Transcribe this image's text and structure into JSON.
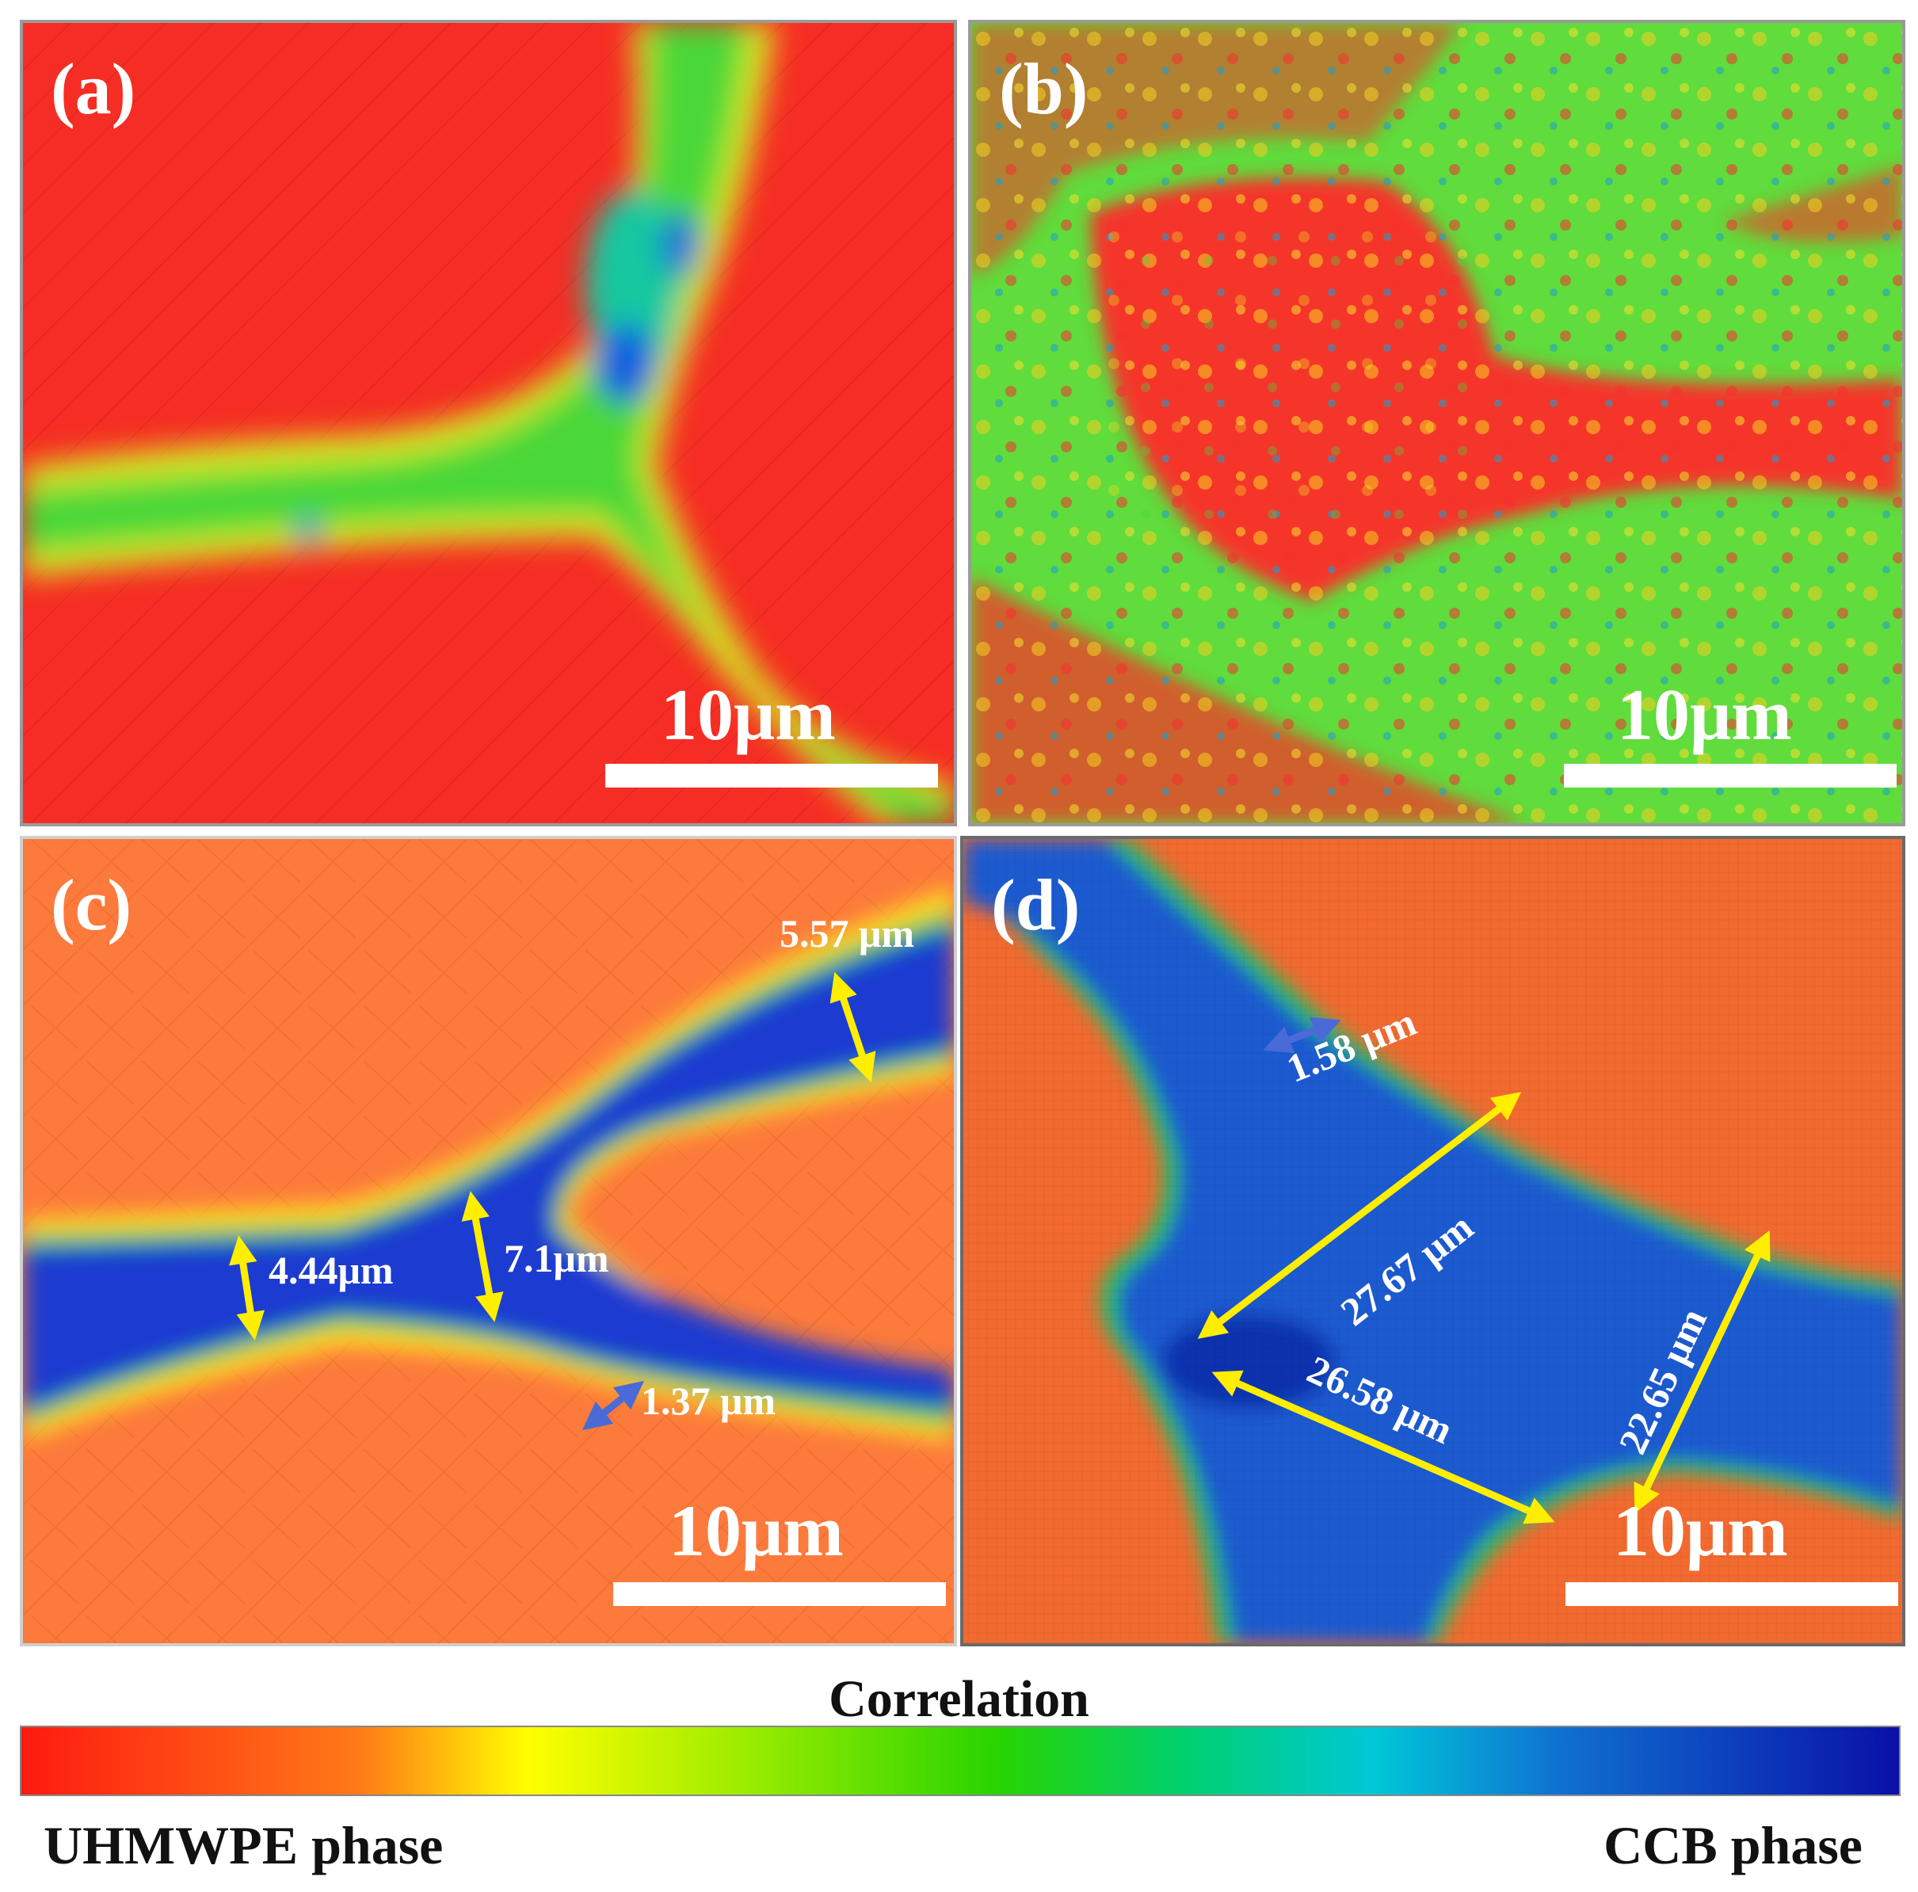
{
  "panels": {
    "a": {
      "label": "(a)",
      "scale": "10μm"
    },
    "b": {
      "label": "(b)",
      "scale": "10μm"
    },
    "c": {
      "label": "(c)",
      "scale": "10μm",
      "measurements": {
        "m1": "5.57 μm",
        "m2": "4.44μm",
        "m3": "7.1μm",
        "m4": "1.37 μm"
      }
    },
    "d": {
      "label": "(d)",
      "scale": "10μm",
      "measurements": {
        "m1": "1.58 μm",
        "m2": "27.67 μm",
        "m3": "26.58 μm",
        "m4": "22.65 μm"
      }
    }
  },
  "colorbar": {
    "title": "Correlation",
    "left_label": "UHMWPE phase",
    "right_label": "CCB phase",
    "colors": [
      "#ff1a10",
      "#ff7a18",
      "#ffff00",
      "#28d400",
      "#00c8d8",
      "#1070d0",
      "#0a10a8"
    ]
  }
}
